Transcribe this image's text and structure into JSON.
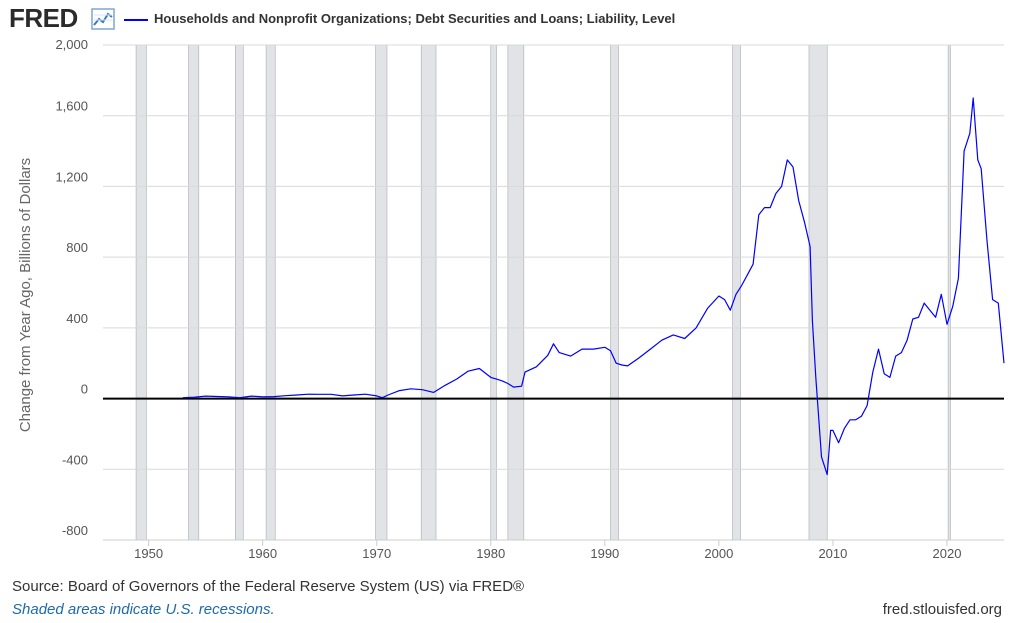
{
  "header": {
    "logo_text": "FRED",
    "logo_icon": "line-chart-icon",
    "legend_label": "Households and Nonprofit Organizations; Debt Securities and Loans; Liability, Level"
  },
  "footer": {
    "source": "Source: Board of Governors of the Federal Reserve System (US) via FRED®",
    "note": "Shaded areas indicate U.S. recessions.",
    "site": "fred.stlouisfed.org"
  },
  "colors": {
    "series": "#0000ff",
    "recession": "#e1e3e6",
    "grid": "#d9d9d9",
    "zero_line": "#000000"
  },
  "chart_data": {
    "type": "line",
    "title": "",
    "xlabel": "",
    "ylabel": "Change from Year Ago, Billions of Dollars",
    "xlim": [
      1946.0,
      2025.0
    ],
    "ylim": [
      -800,
      2000
    ],
    "x_ticks": [
      1950,
      1960,
      1970,
      1980,
      1990,
      2000,
      2010,
      2020
    ],
    "y_ticks": [
      -800,
      -400,
      0,
      400,
      800,
      1200,
      1600,
      2000
    ],
    "y_tick_labels": [
      "-800",
      "-400",
      "0",
      "400",
      "800",
      "1,200",
      "1,600",
      "2,000"
    ],
    "grid": "horizontal",
    "legend": "top-left",
    "recessions": [
      [
        1948.9,
        1949.8
      ],
      [
        1953.5,
        1954.4
      ],
      [
        1957.6,
        1958.3
      ],
      [
        1960.3,
        1961.1
      ],
      [
        1969.9,
        1970.9
      ],
      [
        1973.9,
        1975.2
      ],
      [
        1980.0,
        1980.5
      ],
      [
        1981.5,
        1982.9
      ],
      [
        1990.5,
        1991.2
      ],
      [
        2001.2,
        2001.9
      ],
      [
        2007.9,
        2009.5
      ],
      [
        2020.1,
        2020.3
      ]
    ],
    "series": [
      {
        "name": "Households and Nonprofit Organizations; Debt Securities and Loans; Liability, Level",
        "x": [
          1953.0,
          1954.0,
          1955.0,
          1956.0,
          1957.0,
          1958.0,
          1959.0,
          1960.0,
          1961.0,
          1962.0,
          1963.0,
          1964.0,
          1965.0,
          1966.0,
          1967.0,
          1968.0,
          1969.0,
          1970.0,
          1970.5,
          1971.0,
          1972.0,
          1973.0,
          1974.0,
          1975.0,
          1976.0,
          1977.0,
          1978.0,
          1979.0,
          1980.0,
          1980.5,
          1981.0,
          1981.5,
          1982.0,
          1982.7,
          1983.0,
          1984.0,
          1985.0,
          1985.5,
          1986.0,
          1987.0,
          1988.0,
          1989.0,
          1990.0,
          1990.5,
          1991.0,
          1991.5,
          1992.0,
          1993.0,
          1994.0,
          1995.0,
          1996.0,
          1997.0,
          1998.0,
          1999.0,
          2000.0,
          2000.5,
          2001.0,
          2001.5,
          2002.0,
          2002.5,
          2003.0,
          2003.5,
          2004.0,
          2004.5,
          2005.0,
          2005.5,
          2006.0,
          2006.5,
          2007.0,
          2007.5,
          2008.0,
          2008.2,
          2008.5,
          2009.0,
          2009.5,
          2009.8,
          2010.0,
          2010.5,
          2011.0,
          2011.5,
          2012.0,
          2012.5,
          2013.0,
          2013.5,
          2014.0,
          2014.5,
          2015.0,
          2015.5,
          2016.0,
          2016.5,
          2017.0,
          2017.5,
          2018.0,
          2018.5,
          2019.0,
          2019.5,
          2020.0,
          2020.5,
          2021.0,
          2021.5,
          2022.0,
          2022.3,
          2022.7,
          2023.0,
          2023.5,
          2024.0,
          2024.5,
          2025.0
        ],
        "y": [
          5,
          8,
          14,
          12,
          10,
          5,
          14,
          10,
          11,
          16,
          20,
          25,
          24,
          24,
          15,
          20,
          25,
          15,
          5,
          20,
          45,
          55,
          50,
          35,
          75,
          110,
          155,
          170,
          120,
          110,
          100,
          85,
          65,
          70,
          150,
          180,
          245,
          310,
          260,
          240,
          280,
          280,
          290,
          270,
          200,
          190,
          185,
          230,
          280,
          330,
          360,
          340,
          400,
          510,
          580,
          560,
          500,
          590,
          640,
          700,
          760,
          1040,
          1080,
          1080,
          1160,
          1200,
          1350,
          1310,
          1120,
          1000,
          860,
          440,
          120,
          -330,
          -430,
          -180,
          -180,
          -250,
          -170,
          -120,
          -120,
          -100,
          -40,
          150,
          280,
          140,
          120,
          240,
          260,
          330,
          450,
          460,
          540,
          500,
          460,
          590,
          420,
          520,
          680,
          1400,
          1500,
          1700,
          1350,
          1300,
          900,
          560,
          540,
          200
        ]
      }
    ]
  }
}
